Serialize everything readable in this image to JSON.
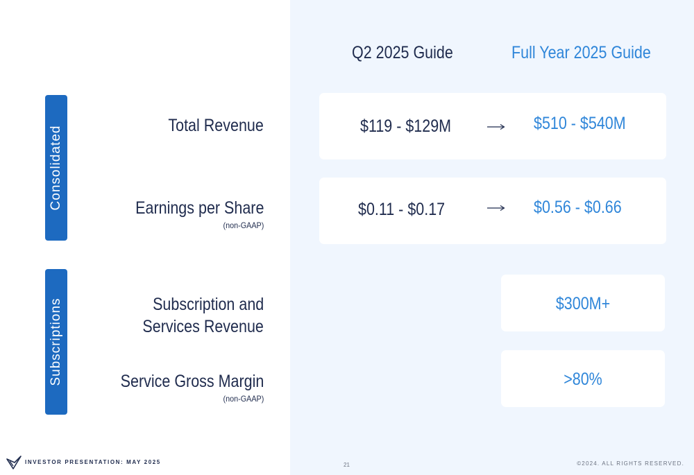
{
  "columns": {
    "q2": "Q2 2025 Guide",
    "full_year": "Full Year 2025 Guide"
  },
  "sections": {
    "consolidated": "Consolidated",
    "subscriptions": "Subscriptions"
  },
  "rows": [
    {
      "label": "Total Revenue",
      "sublabel": "",
      "q2": "$119 - $129M",
      "full_year": "$510 - $540M"
    },
    {
      "label": "Earnings per Share",
      "sublabel": "(non-GAAP)",
      "q2": "$0.11 - $0.17",
      "full_year": "$0.56 - $0.66"
    },
    {
      "label_line1": "Subscription and",
      "label_line2": "Services Revenue",
      "full_year": "$300M+"
    },
    {
      "label": "Service Gross Margin",
      "sublabel": "(non-GAAP)",
      "full_year": ">80%"
    }
  ],
  "footer": {
    "left": "INVESTOR PRESENTATION: MAY 2025",
    "page": "21",
    "right": "©2024.  ALL RIGHTS RESERVED."
  },
  "colors": {
    "accent_blue": "#2f86d9",
    "tab_blue": "#1d6ac0",
    "navy_text": "#1f2b4d",
    "panel_bg": "#f0f6fe"
  },
  "icons": {
    "logo": "brand-logo-icon",
    "arrow": "right-arrow-icon"
  }
}
